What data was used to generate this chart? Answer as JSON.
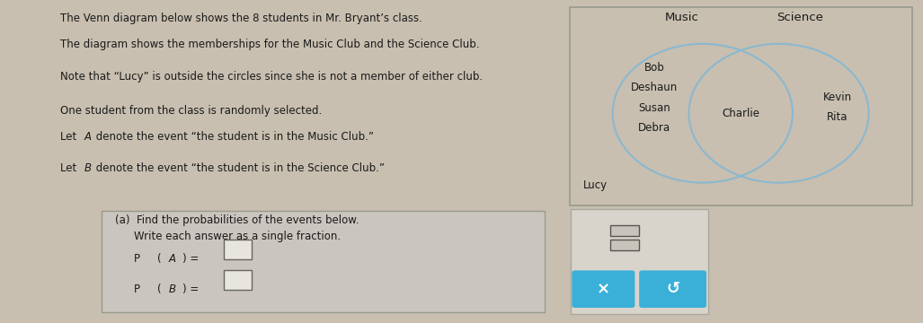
{
  "bg_color": "#c8bfb0",
  "main_panel_color": "#d8d0c4",
  "venn_bg": "#e0dbd2",
  "bottom_box_bg": "#d4cfc8",
  "bottom_box_inner": "#cac5be",
  "button_panel_bg": "#d0cbc4",
  "button_color": "#3ab0d8",
  "title_lines": [
    "The Venn diagram below shows the 8 students in Mr. Bryant’s class.",
    "The diagram shows the memberships for the Music Club and the Science Club."
  ],
  "note_line": "Note that “Lucy” is outside the circles since she is not a member of either club.",
  "one_student_line": "One student from the class is randomly selected.",
  "let_A_line": "Let A denote the event “the student is in the Music Club.”",
  "let_B_line": "Let B denote the event “the student is in the Science Club.”",
  "part_a_header": "(a)  Find the probabilities of the events below.",
  "part_a_sub": "Write each answer as a single fraction.",
  "venn_title_music": "Music",
  "venn_title_science": "Science",
  "music_only": [
    "Bob",
    "Deshaun",
    "Susan",
    "Debra"
  ],
  "intersection": [
    "Charlie"
  ],
  "science_only": [
    "Kevin",
    "Rita"
  ],
  "outside": [
    "Lucy"
  ],
  "circle_color": "#8ab8d0",
  "circle_lw": 1.5,
  "font_color": "#1a1a1a",
  "name_fontsize": 8.5,
  "label_fontsize": 9.5,
  "text_fontsize": 8.5
}
